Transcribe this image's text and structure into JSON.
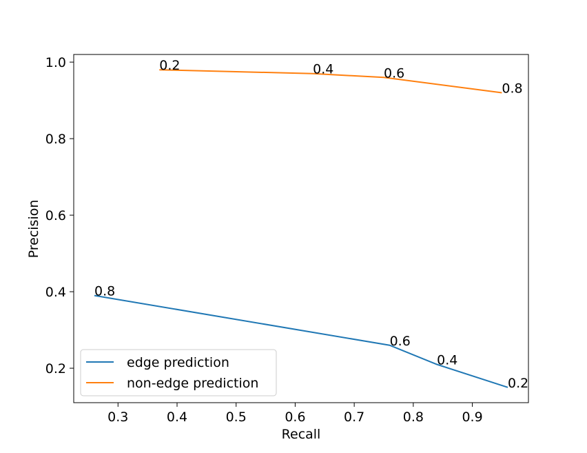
{
  "chart_data": {
    "type": "line",
    "xlabel": "Recall",
    "ylabel": "Precision",
    "xlim": [
      0.225,
      0.995
    ],
    "ylim": [
      0.11,
      1.02
    ],
    "xticks": [
      0.3,
      0.4,
      0.5,
      0.6,
      0.7,
      0.8,
      0.9
    ],
    "xtick_labels": [
      "0.3",
      "0.4",
      "0.5",
      "0.6",
      "0.7",
      "0.8",
      "0.9"
    ],
    "yticks": [
      0.2,
      0.4,
      0.6,
      0.8,
      1.0
    ],
    "ytick_labels": [
      "0.2",
      "0.4",
      "0.6",
      "0.8",
      "1.0"
    ],
    "grid": false,
    "legend_position": "lower-left",
    "series": [
      {
        "name": "edge prediction",
        "color": "#1f77b4",
        "points": [
          {
            "x": 0.26,
            "y": 0.39,
            "label": "0.8"
          },
          {
            "x": 0.76,
            "y": 0.26,
            "label": "0.6"
          },
          {
            "x": 0.84,
            "y": 0.21,
            "label": "0.4"
          },
          {
            "x": 0.96,
            "y": 0.15,
            "label": "0.2"
          }
        ]
      },
      {
        "name": "non-edge prediction",
        "color": "#ff7f0e",
        "points": [
          {
            "x": 0.37,
            "y": 0.98,
            "label": "0.2"
          },
          {
            "x": 0.63,
            "y": 0.97,
            "label": "0.4"
          },
          {
            "x": 0.75,
            "y": 0.96,
            "label": "0.6"
          },
          {
            "x": 0.95,
            "y": 0.92,
            "label": "0.8"
          }
        ]
      }
    ]
  }
}
